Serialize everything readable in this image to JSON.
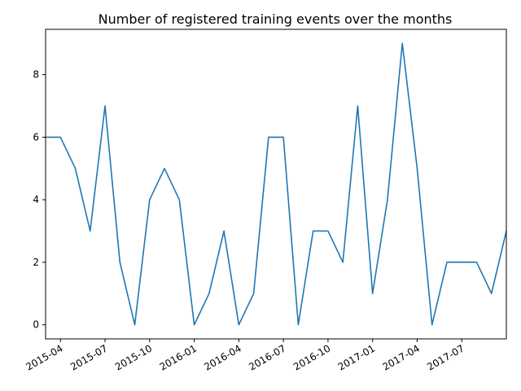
{
  "chart_data": {
    "type": "line",
    "title": "Number of registered training events over the months",
    "xlabel": "",
    "ylabel": "",
    "grid": false,
    "legend": "none",
    "line_color": "#1f77b4",
    "x": [
      "2015-03",
      "2015-04",
      "2015-05",
      "2015-06",
      "2015-07",
      "2015-08",
      "2015-09",
      "2015-10",
      "2015-11",
      "2015-12",
      "2016-01",
      "2016-02",
      "2016-03",
      "2016-04",
      "2016-05",
      "2016-06",
      "2016-07",
      "2016-08",
      "2016-09",
      "2016-10",
      "2016-11",
      "2016-12",
      "2017-01",
      "2017-02",
      "2017-03",
      "2017-04",
      "2017-05",
      "2017-06",
      "2017-07",
      "2017-08",
      "2017-09",
      "2017-10"
    ],
    "values": [
      6,
      6,
      5,
      3,
      7,
      2,
      0,
      4,
      5,
      4,
      0,
      1,
      3,
      0,
      1,
      6,
      6,
      0,
      3,
      3,
      2,
      7,
      1,
      4,
      9,
      5,
      0,
      2,
      2,
      2,
      1,
      3
    ],
    "xlim": [
      "2015-03",
      "2017-10"
    ],
    "ylim": [
      -0.45,
      9.45
    ],
    "x_ticks": [
      "2015-04",
      "2015-07",
      "2015-10",
      "2016-01",
      "2016-04",
      "2016-07",
      "2016-10",
      "2017-01",
      "2017-04",
      "2017-07"
    ],
    "y_ticks": [
      "0",
      "2",
      "4",
      "6",
      "8"
    ]
  }
}
